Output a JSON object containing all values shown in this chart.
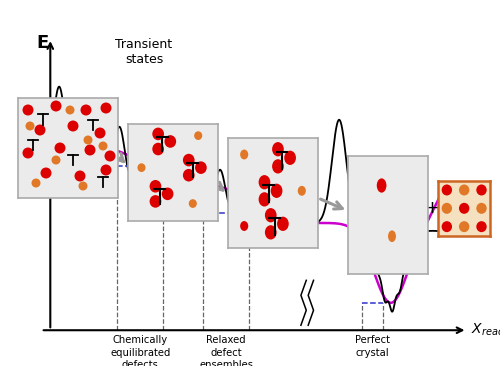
{
  "bg_color": "#ffffff",
  "black_line_color": "#000000",
  "magenta_line_color": "#cc00cc",
  "blue_dashed_color": "#3333cc",
  "dashed_vert_color": "#666666",
  "label1": "Chemically\nequilibrated\ndefects",
  "label2": "Relaxed\ndefect\nensembles",
  "label3": "Perfect\ncrystal",
  "transient_label": "Transient\nstates",
  "red_dot_color": "#dd0000",
  "orange_dot_color": "#e07828",
  "box_facecolor": "#ebebeb",
  "box_edgecolor": "#aaaaaa",
  "crystal_box_facecolor": "#f5e0c0",
  "crystal_box_edgecolor": "#cc6622"
}
